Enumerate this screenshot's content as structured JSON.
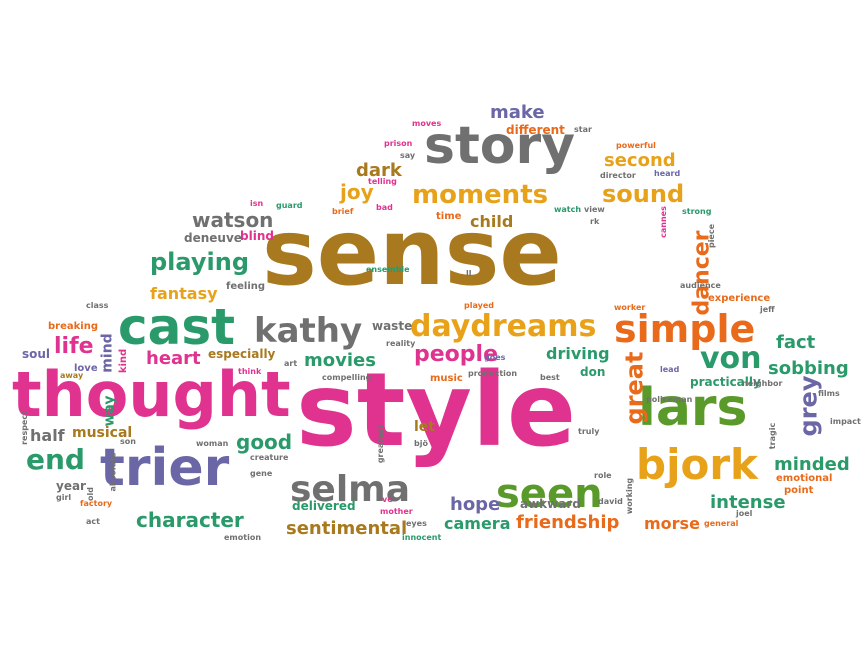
{
  "words": [
    {
      "text": "sense",
      "color": "#a8791e"
    },
    {
      "text": "style",
      "color": "#e0338f"
    },
    {
      "text": "thought",
      "color": "#e0338f"
    },
    {
      "text": "story",
      "color": "#707070"
    },
    {
      "text": "cast",
      "color": "#2a9a6b"
    },
    {
      "text": "trier",
      "color": "#6b66a6"
    },
    {
      "text": "lars",
      "color": "#5a9a2a"
    },
    {
      "text": "selma",
      "color": "#707070"
    },
    {
      "text": "bjork",
      "color": "#e8a21a"
    },
    {
      "text": "simple",
      "color": "#e86a1a"
    },
    {
      "text": "seen",
      "color": "#5a9a2a"
    },
    {
      "text": "kathy",
      "color": "#707070"
    },
    {
      "text": "daydreams",
      "color": "#e8a21a"
    },
    {
      "text": "moments",
      "color": "#e8a21a"
    },
    {
      "text": "sound",
      "color": "#e8a21a"
    },
    {
      "text": "playing",
      "color": "#2a9a6b"
    },
    {
      "text": "watson",
      "color": "#707070"
    },
    {
      "text": "character",
      "color": "#2a9a6b"
    },
    {
      "text": "von",
      "color": "#2a9a6b"
    },
    {
      "text": "great",
      "color": "#e86a1a"
    },
    {
      "text": "grey",
      "color": "#6b66a6"
    },
    {
      "text": "end",
      "color": "#2a9a6b"
    },
    {
      "text": "life",
      "color": "#e0338f"
    },
    {
      "text": "people",
      "color": "#e0338f"
    },
    {
      "text": "movies",
      "color": "#2a9a6b"
    },
    {
      "text": "heart",
      "color": "#e0338f"
    },
    {
      "text": "good",
      "color": "#2a9a6b"
    },
    {
      "text": "dancer",
      "color": "#e86a1a"
    },
    {
      "text": "sobbing",
      "color": "#2a9a6b"
    },
    {
      "text": "fact",
      "color": "#2a9a6b"
    },
    {
      "text": "minded",
      "color": "#2a9a6b"
    },
    {
      "text": "intense",
      "color": "#2a9a6b"
    },
    {
      "text": "friendship",
      "color": "#e86a1a"
    },
    {
      "text": "camera",
      "color": "#2a9a6b"
    },
    {
      "text": "hope",
      "color": "#6b66a6"
    },
    {
      "text": "sentimental",
      "color": "#a8791e"
    },
    {
      "text": "morse",
      "color": "#e86a1a"
    },
    {
      "text": "make",
      "color": "#6b66a6"
    },
    {
      "text": "different",
      "color": "#e86a1a"
    },
    {
      "text": "second",
      "color": "#e8a21a"
    },
    {
      "text": "dark",
      "color": "#a8791e"
    },
    {
      "text": "joy",
      "color": "#e8a21a"
    },
    {
      "text": "child",
      "color": "#a8791e"
    },
    {
      "text": "deneuve",
      "color": "#707070"
    },
    {
      "text": "blind",
      "color": "#e0338f"
    },
    {
      "text": "fantasy",
      "color": "#e8a21a"
    },
    {
      "text": "feeling",
      "color": "#707070"
    },
    {
      "text": "waste",
      "color": "#707070"
    },
    {
      "text": "driving",
      "color": "#2a9a6b"
    },
    {
      "text": "especially",
      "color": "#a8791e"
    },
    {
      "text": "half",
      "color": "#707070"
    },
    {
      "text": "musical",
      "color": "#a8791e"
    },
    {
      "text": "way",
      "color": "#2a9a6b"
    },
    {
      "text": "mind",
      "color": "#6b66a6"
    },
    {
      "text": "year",
      "color": "#707070"
    },
    {
      "text": "delivered",
      "color": "#2a9a6b"
    },
    {
      "text": "awkward",
      "color": "#707070"
    },
    {
      "text": "practically",
      "color": "#2a9a6b"
    },
    {
      "text": "emotional",
      "color": "#e86a1a"
    },
    {
      "text": "point",
      "color": "#e86a1a"
    },
    {
      "text": "let",
      "color": "#a8791e"
    },
    {
      "text": "don",
      "color": "#2a9a6b"
    },
    {
      "text": "music",
      "color": "#e86a1a"
    },
    {
      "text": "experience",
      "color": "#e86a1a"
    },
    {
      "text": "soul",
      "color": "#6b66a6"
    },
    {
      "text": "breaking",
      "color": "#e86a1a"
    },
    {
      "text": "class",
      "color": "#707070"
    },
    {
      "text": "love",
      "color": "#6b66a6"
    },
    {
      "text": "away",
      "color": "#a8791e"
    },
    {
      "text": "kind",
      "color": "#e0338f"
    },
    {
      "text": "art",
      "color": "#707070"
    },
    {
      "text": "think",
      "color": "#e0338f"
    },
    {
      "text": "compelling",
      "color": "#707070"
    },
    {
      "text": "reality",
      "color": "#707070"
    },
    {
      "text": "goes",
      "color": "#6b66a6"
    },
    {
      "text": "production",
      "color": "#707070"
    },
    {
      "text": "best",
      "color": "#707070"
    },
    {
      "text": "lead",
      "color": "#6b66a6"
    },
    {
      "text": "neighbor",
      "color": "#707070"
    },
    {
      "text": "films",
      "color": "#707070"
    },
    {
      "text": "impact",
      "color": "#707070"
    },
    {
      "text": "jeff",
      "color": "#707070"
    },
    {
      "text": "worker",
      "color": "#e86a1a"
    },
    {
      "text": "played",
      "color": "#e86a1a"
    },
    {
      "text": "ll",
      "color": "#707070"
    },
    {
      "text": "ensemble",
      "color": "#2a9a6b"
    },
    {
      "text": "guard",
      "color": "#2a9a6b"
    },
    {
      "text": "isn",
      "color": "#e0338f"
    },
    {
      "text": "brief",
      "color": "#e86a1a"
    },
    {
      "text": "bad",
      "color": "#e0338f"
    },
    {
      "text": "time",
      "color": "#e86a1a"
    },
    {
      "text": "watch",
      "color": "#2a9a6b"
    },
    {
      "text": "view",
      "color": "#707070"
    },
    {
      "text": "rk",
      "color": "#707070"
    },
    {
      "text": "cannes",
      "color": "#e0338f"
    },
    {
      "text": "strong",
      "color": "#2a9a6b"
    },
    {
      "text": "piece",
      "color": "#707070"
    },
    {
      "text": "audience",
      "color": "#707070"
    },
    {
      "text": "prison",
      "color": "#e0338f"
    },
    {
      "text": "say",
      "color": "#707070"
    },
    {
      "text": "telling",
      "color": "#e0338f"
    },
    {
      "text": "moves",
      "color": "#e0338f"
    },
    {
      "text": "star",
      "color": "#707070"
    },
    {
      "text": "director",
      "color": "#707070"
    },
    {
      "text": "heard",
      "color": "#6b66a6"
    },
    {
      "text": "powerful",
      "color": "#e86a1a"
    },
    {
      "text": "respect",
      "color": "#707070"
    },
    {
      "text": "girl",
      "color": "#707070"
    },
    {
      "text": "old",
      "color": "#707070"
    },
    {
      "text": "absolute",
      "color": "#707070"
    },
    {
      "text": "factory",
      "color": "#e86a1a"
    },
    {
      "text": "act",
      "color": "#707070"
    },
    {
      "text": "son",
      "color": "#707070"
    },
    {
      "text": "woman",
      "color": "#707070"
    },
    {
      "text": "creature",
      "color": "#707070"
    },
    {
      "text": "gene",
      "color": "#707070"
    },
    {
      "text": "emotion",
      "color": "#707070"
    },
    {
      "text": "greatest",
      "color": "#707070"
    },
    {
      "text": "ve",
      "color": "#e0338f"
    },
    {
      "text": "mother",
      "color": "#e0338f"
    },
    {
      "text": "bjö",
      "color": "#707070"
    },
    {
      "text": "eyes",
      "color": "#707070"
    },
    {
      "text": "innocent",
      "color": "#2a9a6b"
    },
    {
      "text": "truly",
      "color": "#707070"
    },
    {
      "text": "role",
      "color": "#707070"
    },
    {
      "text": "david",
      "color": "#707070"
    },
    {
      "text": "working",
      "color": "#707070"
    },
    {
      "text": "policeman",
      "color": "#707070"
    },
    {
      "text": "tragic",
      "color": "#707070"
    },
    {
      "text": "joel",
      "color": "#707070"
    },
    {
      "text": "general",
      "color": "#e86a1a"
    }
  ]
}
